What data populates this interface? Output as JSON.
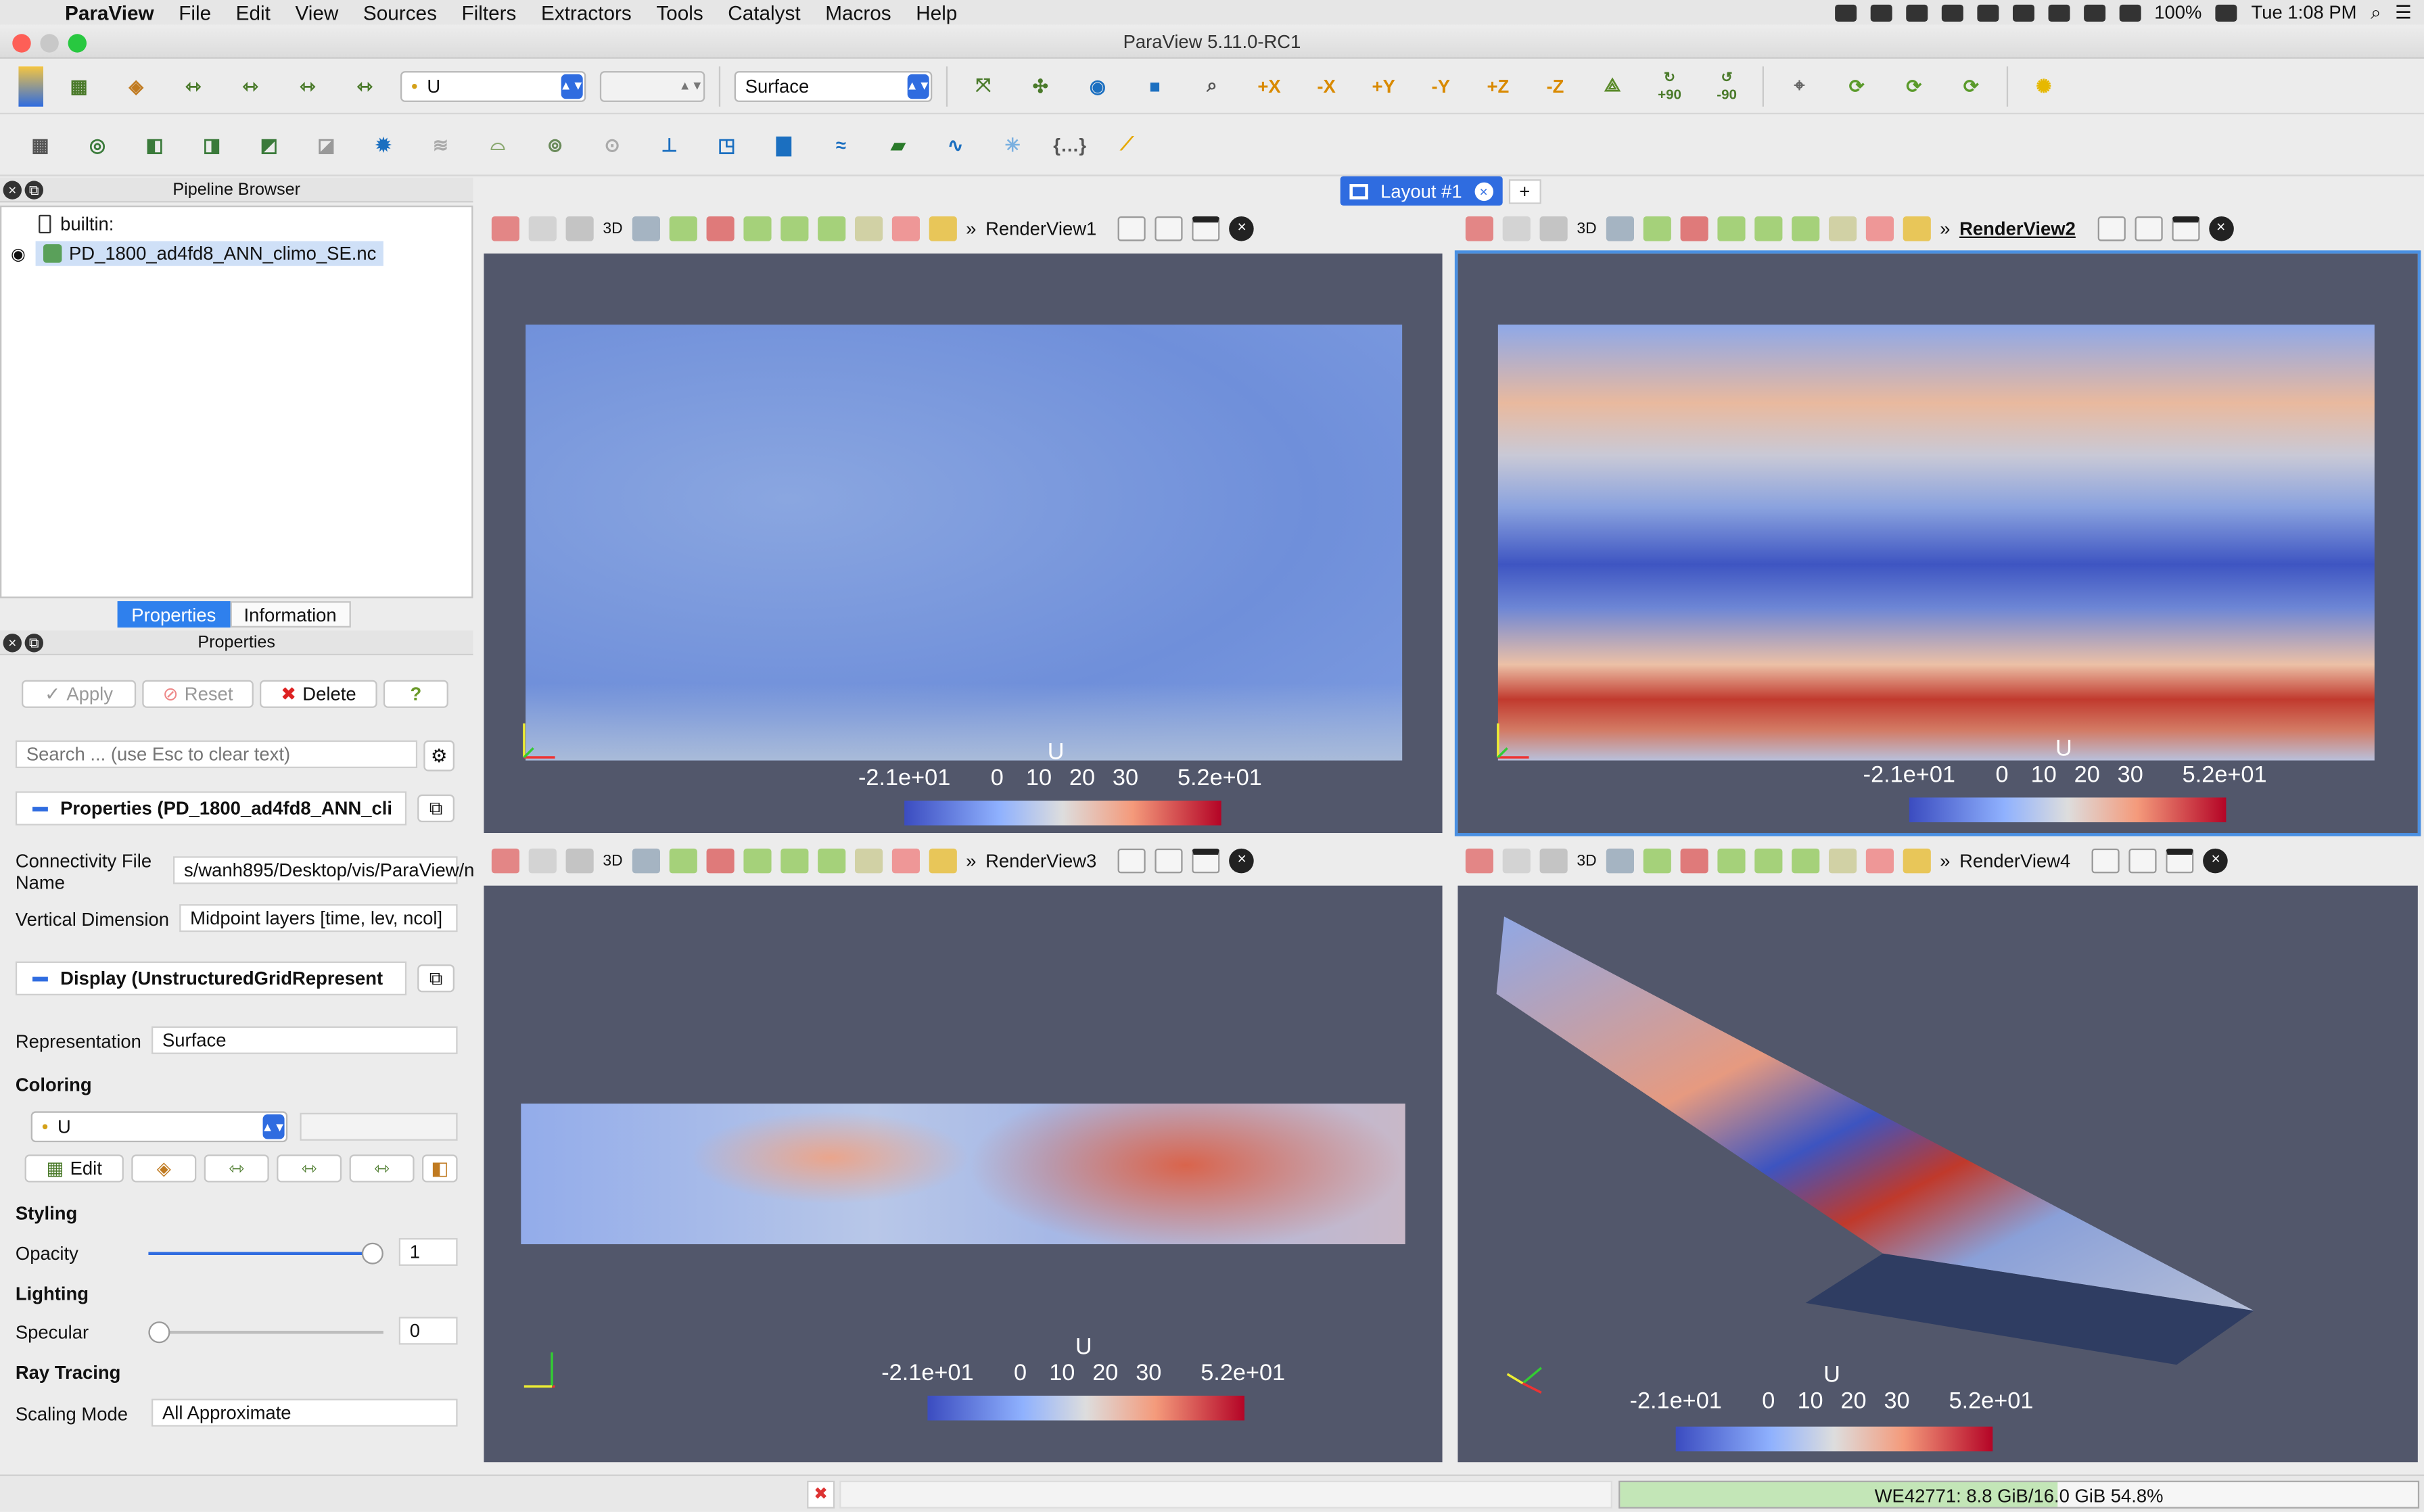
{
  "menubar": {
    "app": "ParaView",
    "items": [
      "File",
      "Edit",
      "View",
      "Sources",
      "Filters",
      "Extractors",
      "Tools",
      "Catalyst",
      "Macros",
      "Help"
    ],
    "battery": "100%",
    "clock": "Tue 1:08 PM"
  },
  "window": {
    "title": "ParaView 5.11.0-RC1"
  },
  "toolbar": {
    "array_select": "U",
    "component_select": "",
    "representation": "Surface",
    "rot_pos90": "+90",
    "rot_neg90": "-90",
    "axes": [
      "+X",
      "-X",
      "+Y",
      "-Y",
      "+Z",
      "-Z"
    ]
  },
  "pipeline": {
    "title": "Pipeline Browser",
    "root": "builtin:",
    "item": "PD_1800_ad4fd8_ANN_climo_SE.nc"
  },
  "tabs": {
    "properties": "Properties",
    "information": "Information"
  },
  "properties": {
    "title": "Properties",
    "apply": "Apply",
    "reset": "Reset",
    "delete": "Delete",
    "help": "?",
    "search_placeholder": "Search ... (use Esc to clear text)",
    "section_props": "Properties (PD_1800_ad4fd8_ANN_cli",
    "conn_label": "Connectivity File Name",
    "conn_value": "s/wanh895/Desktop/vis/ParaView/n",
    "vert_label": "Vertical Dimension",
    "vert_value": "Midpoint layers [time, lev, ncol]",
    "section_display": "Display (UnstructuredGridRepresent",
    "repr_label": "Representation",
    "repr_value": "Surface",
    "coloring": "Coloring",
    "color_array": "U",
    "edit": "Edit",
    "styling": "Styling",
    "opacity_label": "Opacity",
    "opacity_value": "1",
    "lighting": "Lighting",
    "specular_label": "Specular",
    "specular_value": "0",
    "raytracing": "Ray Tracing",
    "scaling_label": "Scaling Mode",
    "scaling_value": "All Approximate"
  },
  "layout": {
    "tab": "Layout #1",
    "add": "+"
  },
  "views": [
    {
      "name": "RenderView1",
      "active": false,
      "colorbar": {
        "title": "U",
        "min": "-2.1e+01",
        "ticks": [
          "0",
          "10",
          "20",
          "30"
        ],
        "max": "5.2e+01"
      }
    },
    {
      "name": "RenderView2",
      "active": true,
      "colorbar": {
        "title": "U",
        "min": "-2.1e+01",
        "ticks": [
          "0",
          "10",
          "20",
          "30"
        ],
        "max": "5.2e+01"
      }
    },
    {
      "name": "RenderView3",
      "active": false,
      "colorbar": {
        "title": "U",
        "min": "-2.1e+01",
        "ticks": [
          "0",
          "10",
          "20",
          "30"
        ],
        "max": "5.2e+01"
      }
    },
    {
      "name": "RenderView4",
      "active": false,
      "colorbar": {
        "title": "U",
        "min": "-2.1e+01",
        "ticks": [
          "0",
          "10",
          "20",
          "30"
        ],
        "max": "5.2e+01"
      }
    }
  ],
  "status": {
    "memory": "WE42771: 8.8 GiB/16.0 GiB 54.8%",
    "memory_fraction": 0.548
  },
  "colors": {
    "accent": "#2f6ce0",
    "view_bg": "#52576b",
    "cold": "#3b4cc0",
    "hot": "#b40426"
  }
}
